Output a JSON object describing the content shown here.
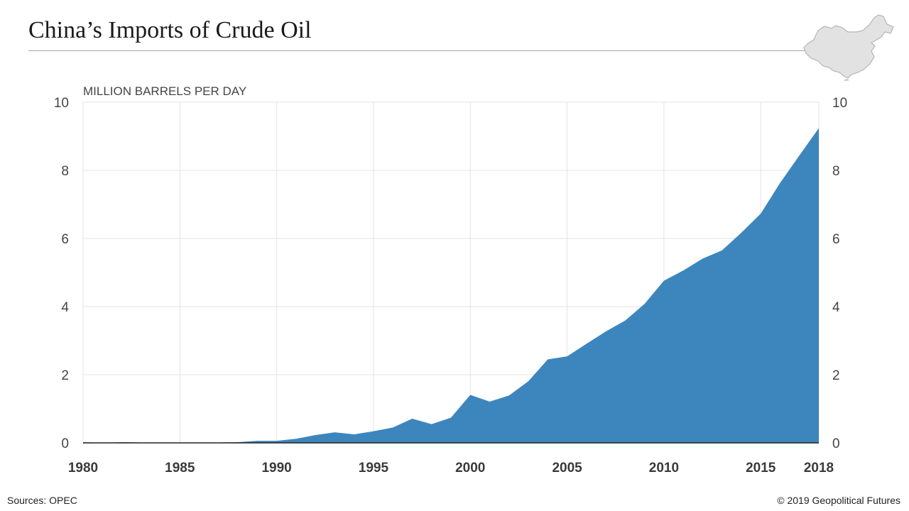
{
  "header": {
    "title": "China’s Imports of Crude Oil"
  },
  "footer": {
    "source": "Sources: OPEC",
    "copyright": "© 2019 Geopolitical Futures"
  },
  "chart_data": {
    "type": "area",
    "title": "China’s Imports of Crude Oil",
    "unit_label": "MILLION BARRELS PER DAY",
    "xlabel": "",
    "ylabel": "MILLION BARRELS PER DAY",
    "x": [
      1980,
      1981,
      1982,
      1983,
      1984,
      1985,
      1986,
      1987,
      1988,
      1989,
      1990,
      1991,
      1992,
      1993,
      1994,
      1995,
      1996,
      1997,
      1998,
      1999,
      2000,
      2001,
      2002,
      2003,
      2004,
      2005,
      2006,
      2007,
      2008,
      2009,
      2010,
      2011,
      2012,
      2013,
      2014,
      2015,
      2016,
      2017,
      2018
    ],
    "values": [
      0.02,
      0.0,
      0.02,
      0.01,
      0.01,
      0.0,
      0.01,
      0.01,
      0.02,
      0.06,
      0.06,
      0.12,
      0.23,
      0.31,
      0.25,
      0.34,
      0.45,
      0.71,
      0.55,
      0.74,
      1.41,
      1.21,
      1.39,
      1.81,
      2.45,
      2.54,
      2.91,
      3.27,
      3.59,
      4.08,
      4.76,
      5.06,
      5.41,
      5.65,
      6.17,
      6.73,
      7.63,
      8.44,
      9.24
    ],
    "xlim": [
      1980,
      2018
    ],
    "ylim": [
      0,
      10
    ],
    "x_ticks": [
      "1980",
      "1985",
      "1990",
      "1995",
      "2000",
      "2005",
      "2010",
      "2015",
      "2018"
    ],
    "y_ticks": [
      "0",
      "2",
      "4",
      "6",
      "8",
      "10"
    ],
    "grid": true,
    "legend": "none",
    "colors": {
      "area": "#2e7db8",
      "grid": "#e3e3e3",
      "baseline": "#222222",
      "map_fill": "#e2e2e2",
      "map_stroke": "#b5b5b5"
    }
  },
  "icons": {
    "map": "china-map-icon"
  }
}
